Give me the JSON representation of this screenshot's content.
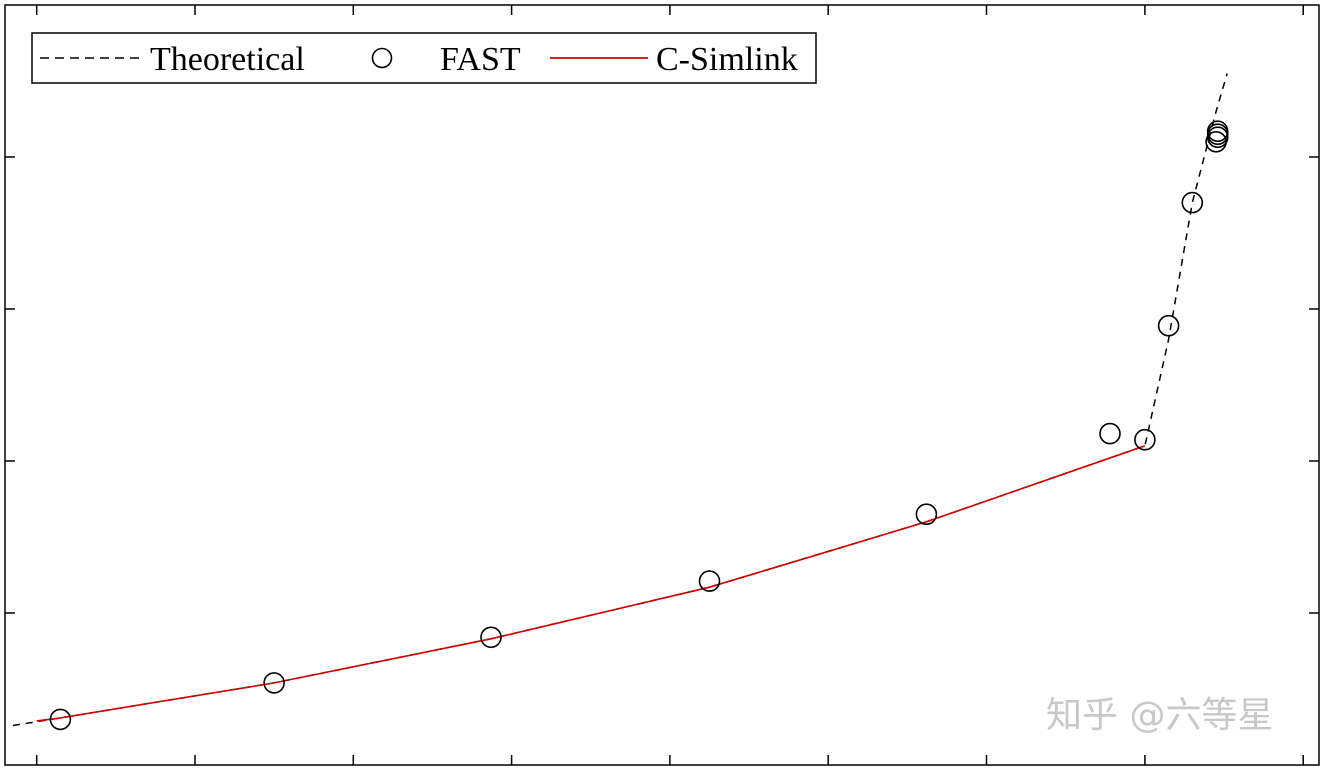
{
  "chart_data": {
    "type": "line",
    "title": "",
    "xlabel": "",
    "ylabel": "",
    "xlim": [
      -0.2,
      8.1
    ],
    "ylim": [
      0,
      5
    ],
    "x_ticks": [
      0,
      1,
      2,
      3,
      4,
      5,
      6,
      7,
      8
    ],
    "y_ticks": [
      1,
      2,
      3,
      4
    ],
    "tick_labels_visible": false,
    "grid": false,
    "legend": {
      "placement": "top-left",
      "orientation": "horizontal",
      "entries": [
        "Theoretical",
        "FAST",
        "C-Simlink"
      ]
    },
    "series": [
      {
        "name": "Theoretical",
        "style": "dashed",
        "color": "#000000",
        "x": [
          -0.15,
          0.15,
          1.5,
          2.87,
          4.25,
          5.62,
          7.0,
          7.15,
          7.3,
          7.45,
          7.52
        ],
        "y": [
          0.26,
          0.31,
          0.54,
          0.83,
          1.17,
          1.6,
          2.1,
          2.8,
          3.7,
          4.3,
          4.55
        ]
      },
      {
        "name": "FAST",
        "style": "markers",
        "marker": "circle-open",
        "color": "#000000",
        "x": [
          0.15,
          1.5,
          2.87,
          4.25,
          5.62,
          6.78,
          7.0,
          7.15,
          7.3,
          7.45,
          7.46,
          7.46,
          7.46
        ],
        "y": [
          0.3,
          0.54,
          0.84,
          1.21,
          1.65,
          2.18,
          2.14,
          2.89,
          3.7,
          4.1,
          4.13,
          4.15,
          4.17
        ]
      },
      {
        "name": "C-Simlink",
        "style": "solid",
        "color": "#d40000",
        "x": [
          0.0,
          0.15,
          1.5,
          2.87,
          4.25,
          5.62,
          7.0
        ],
        "y": [
          0.29,
          0.31,
          0.54,
          0.83,
          1.17,
          1.6,
          2.1
        ]
      }
    ]
  },
  "watermark": "知乎 @六等星"
}
